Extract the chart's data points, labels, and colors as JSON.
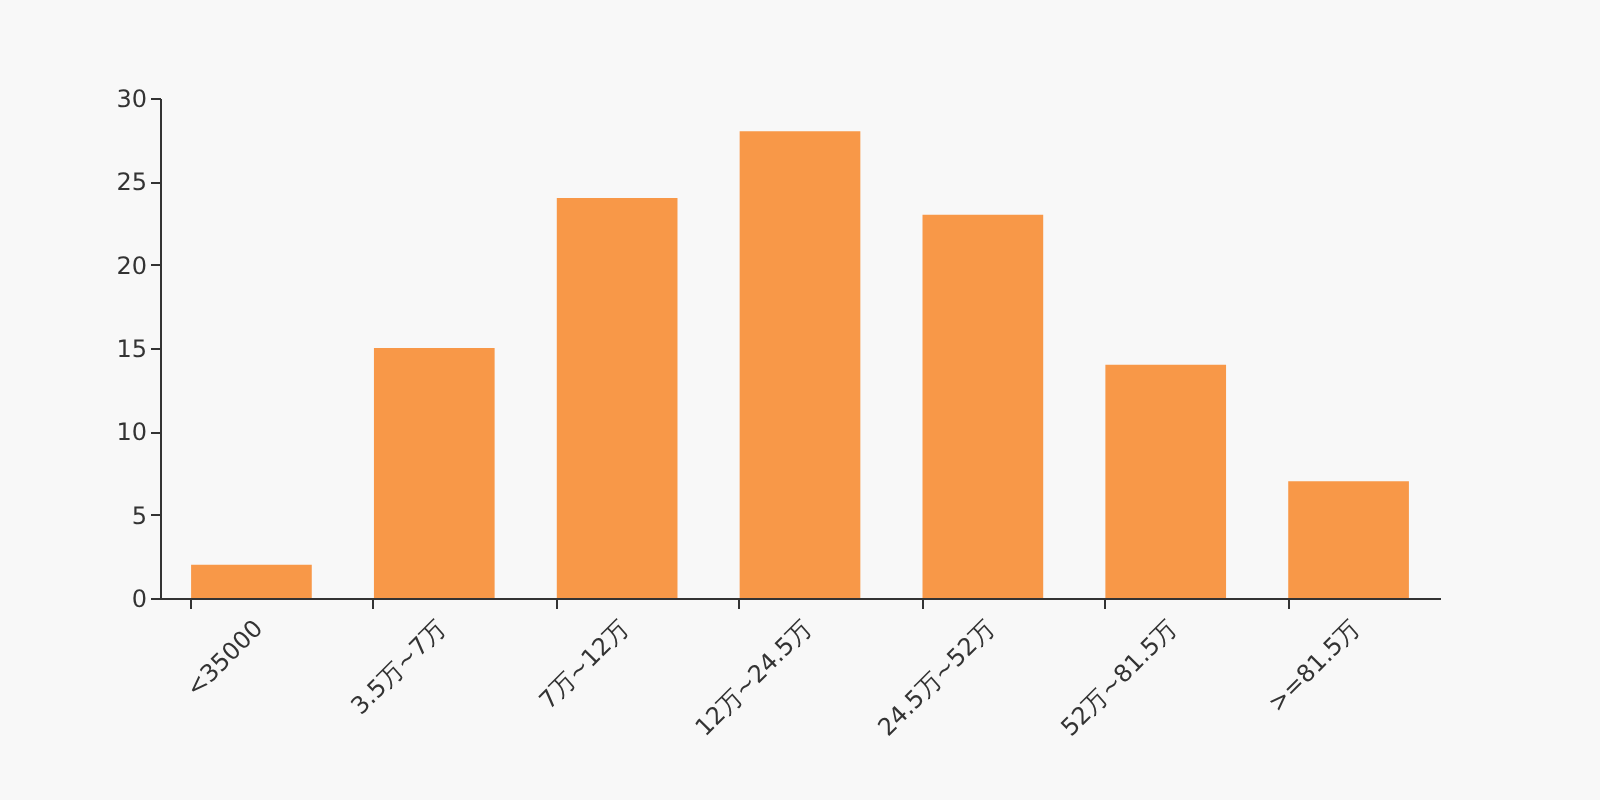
{
  "chart_data": {
    "type": "bar",
    "categories": [
      "<35000",
      "3.5万~7万",
      "7万~12万",
      "12万~24.5万",
      "24.5万~52万",
      "52万~81.5万",
      ">=81.5万"
    ],
    "values": [
      2,
      15,
      24,
      28,
      23,
      14,
      7
    ],
    "color": "#f89848",
    "ylim": [
      0,
      30
    ],
    "yticks": [
      0,
      5,
      10,
      15,
      20,
      25,
      30
    ],
    "grid": false
  }
}
